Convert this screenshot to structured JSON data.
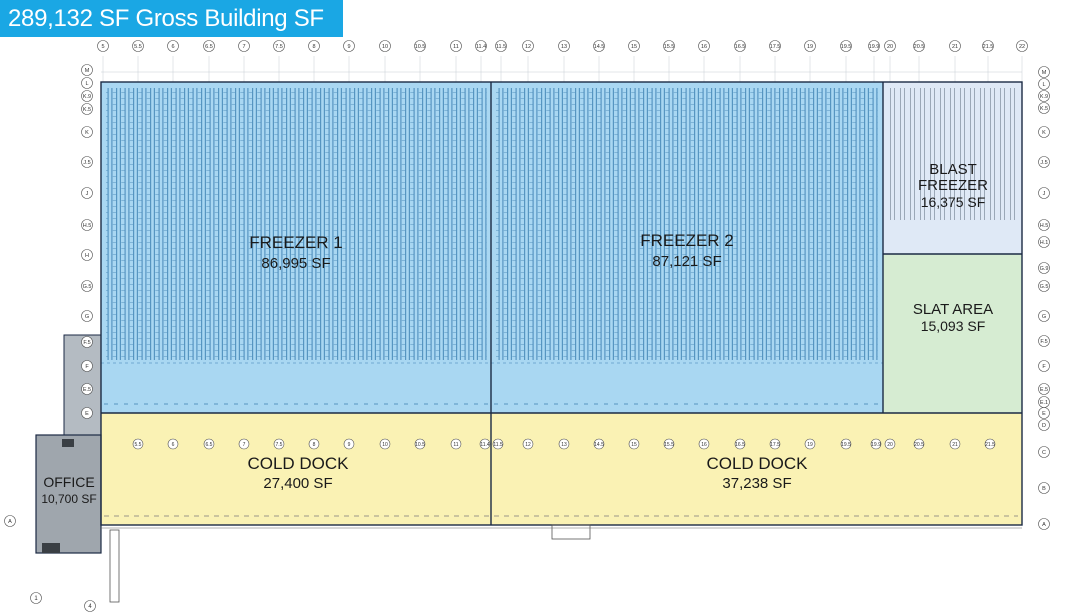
{
  "header": {
    "title": "289,132 SF Gross Building SF"
  },
  "colors": {
    "banner": "#1aa7e4",
    "freezer": "#a9d7f2",
    "blast_freezer": "#dfe9f6",
    "slat_area": "#d6ecd2",
    "cold_dock": "#faf2b4",
    "office": "#9fa6ad",
    "outline": "#1b2a44",
    "rack": "#3b7fb0"
  },
  "areas": {
    "freezer_1": {
      "name": "FREEZER 1",
      "area": "86,995 SF"
    },
    "freezer_2": {
      "name": "FREEZER 2",
      "area": "87,121 SF"
    },
    "blast_freezer": {
      "name_line1": "BLAST",
      "name_line2": "FREEZER",
      "area": "16,375 SF"
    },
    "slat_area": {
      "name": "SLAT AREA",
      "area": "15,093 SF"
    },
    "cold_dock_1": {
      "name": "COLD DOCK",
      "area": "27,400 SF"
    },
    "cold_dock_2": {
      "name": "COLD DOCK",
      "area": "37,238 SF"
    },
    "office": {
      "name": "OFFICE",
      "area": "10,700 SF"
    }
  },
  "gridlines": {
    "top_columns": [
      "5",
      "5.5",
      "6",
      "6.5",
      "7",
      "7.5",
      "8",
      "9",
      "10",
      "10.5",
      "11",
      "11.4",
      "11.5",
      "12",
      "13",
      "14.5",
      "15",
      "15.5",
      "16",
      "16.5",
      "17.5",
      "19",
      "19.5",
      "19.9",
      "20",
      "20.5",
      "21",
      "21.5",
      "22"
    ],
    "inner_columns": [
      "5.5",
      "6",
      "6.5",
      "7",
      "7.5",
      "8",
      "9",
      "10",
      "10.5",
      "11",
      "11.4",
      "11.5",
      "12",
      "13",
      "14.5",
      "15",
      "15.5",
      "16",
      "16.5",
      "17.5",
      "19",
      "19.5",
      "19.9",
      "20",
      "20.5",
      "21",
      "21.5"
    ],
    "left_rows": [
      "M",
      "L",
      "K.9",
      "K.5",
      "K",
      "J.5",
      "J",
      "H.5",
      "H",
      "G.5",
      "G",
      "F.5",
      "F",
      "E.5",
      "E",
      "A"
    ],
    "right_rows": [
      "M",
      "L",
      "K.9",
      "K.5",
      "K",
      "J.5",
      "J",
      "H.5",
      "H.1",
      "G.9",
      "G.5",
      "G",
      "F.5",
      "F",
      "E.5",
      "E.1",
      "E",
      "D",
      "C",
      "B",
      "A"
    ],
    "bottom_columns": [
      "1",
      "4"
    ]
  }
}
